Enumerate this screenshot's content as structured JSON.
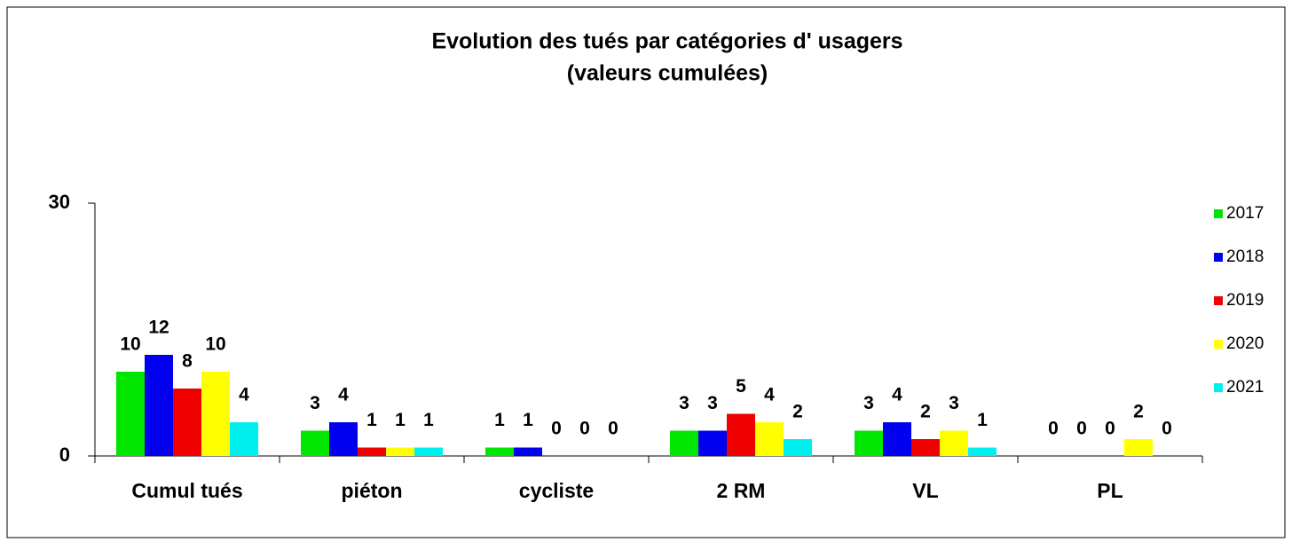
{
  "chart_data": {
    "type": "bar",
    "title": [
      "Evolution des tués par catégories d' usagers",
      "(valeurs cumulées)"
    ],
    "categories": [
      "Cumul tués",
      "piéton",
      "cycliste",
      "2 RM",
      "VL",
      "PL"
    ],
    "series": [
      {
        "name": "2017",
        "color": "#00e600",
        "values": [
          10,
          3,
          1,
          3,
          3,
          0
        ]
      },
      {
        "name": "2018",
        "color": "#0000ee",
        "values": [
          12,
          4,
          1,
          3,
          4,
          0
        ]
      },
      {
        "name": "2019",
        "color": "#ee0000",
        "values": [
          8,
          1,
          0,
          5,
          2,
          0
        ]
      },
      {
        "name": "2020",
        "color": "#ffff00",
        "values": [
          10,
          1,
          0,
          4,
          3,
          2
        ]
      },
      {
        "name": "2021",
        "color": "#00f0f0",
        "values": [
          4,
          1,
          0,
          2,
          1,
          0
        ]
      }
    ],
    "ylim": [
      0,
      30
    ],
    "yticks": [
      0,
      30
    ],
    "grid": false,
    "legend": "right"
  }
}
